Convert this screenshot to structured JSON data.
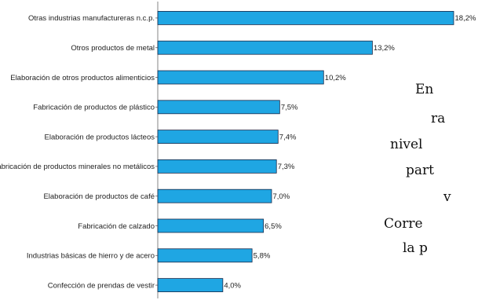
{
  "chart_data": {
    "type": "bar",
    "orientation": "horizontal",
    "categories": [
      "Otras industrias manufactureras n.c.p.",
      "Otros productos de metal",
      "Elaboración de otros productos alimenticios",
      "Fabricación de productos de plástico",
      "Elaboración de productos lácteos",
      "Fabricación de productos minerales no metálicos",
      "Elaboración de productos de café",
      "Fabricación de calzado",
      "Industrias básicas de hierro y de acero",
      "Confección de prendas de vestir"
    ],
    "values": [
      18.2,
      13.2,
      10.2,
      7.5,
      7.4,
      7.3,
      7.0,
      6.5,
      5.8,
      4.0
    ],
    "value_labels": [
      "18,2%",
      "13,2%",
      "10,2%",
      "7,5%",
      "7,4%",
      "7,3%",
      "7,0%",
      "6,5%",
      "5,8%",
      "4,0%"
    ],
    "xlim": [
      0,
      18.2
    ],
    "bar_color": "#1fa6e3",
    "grid": false
  },
  "side_text": {
    "lines": [
      "En",
      "ra",
      "nivel",
      "part",
      "v",
      "Corre",
      "la p"
    ]
  }
}
